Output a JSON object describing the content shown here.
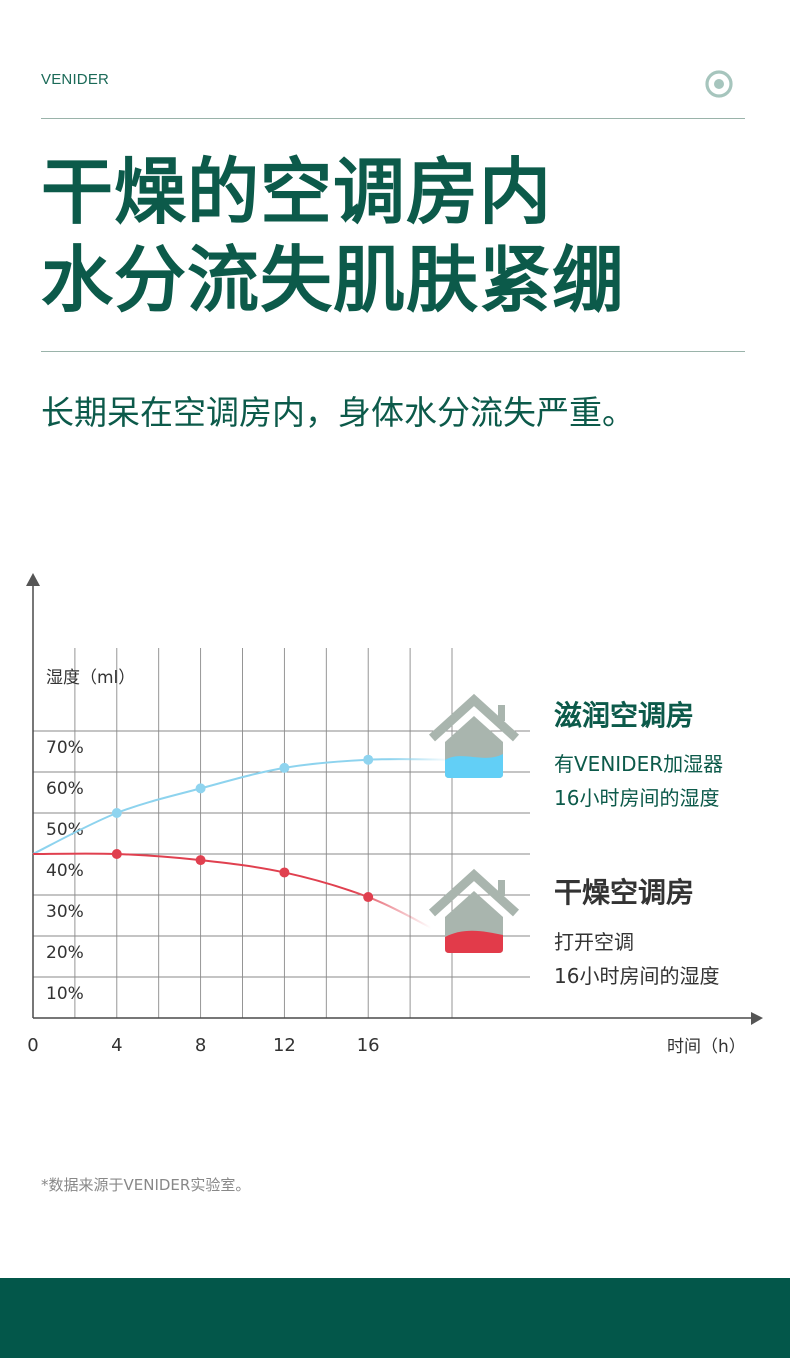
{
  "header": {
    "brand": "VENIDER",
    "menu_icon": "target-circle-icon",
    "headline_line1": "干燥的空调房内",
    "headline_line2": "水分流失肌肤紧绷",
    "subheadline": "长期呆在空调房内，身体水分流失严重。"
  },
  "colors": {
    "brand_green": "#0c5a4a",
    "humid_series": "#8dd3ee",
    "humid_marker": "#8fd4ef",
    "dry_series": "#e0404f",
    "house_roof": "#a9b5ae",
    "house_water_blue": "#62cff6",
    "house_water_red": "#e23b4a",
    "footer": "#03574a"
  },
  "chart_data": {
    "type": "line",
    "ylabel": "湿度（ml）",
    "xlabel": "时间（h）",
    "x_ticks": [
      "0",
      "4",
      "8",
      "12",
      "16"
    ],
    "y_ticks": [
      "10%",
      "20%",
      "30%",
      "40%",
      "50%",
      "60%",
      "70%"
    ],
    "xlim": [
      0,
      24
    ],
    "ylim": [
      0,
      70
    ],
    "grid": true,
    "series": [
      {
        "key": "humid",
        "x": [
          0,
          4,
          8,
          12,
          16,
          20
        ],
        "y": [
          40,
          50,
          56,
          61,
          63,
          63
        ],
        "markers_x": [
          4,
          8,
          12,
          16
        ],
        "markers_y": [
          50,
          56,
          61,
          63
        ]
      },
      {
        "key": "dry",
        "x": [
          0,
          4,
          8,
          12,
          16,
          19
        ],
        "y": [
          40,
          40,
          38.5,
          35.5,
          29.5,
          22
        ],
        "markers_x": [
          4,
          8,
          12,
          16
        ],
        "markers_y": [
          40,
          38.5,
          35.5,
          29.5
        ]
      }
    ],
    "annotations": [
      {
        "icon": "house-blue-water-icon",
        "title": "滋润空调房",
        "line1": "有VENIDER加湿器",
        "line2": "16小时房间的湿度"
      },
      {
        "icon": "house-red-water-icon",
        "title": "干燥空调房",
        "line1": "打开空调",
        "line2": "16小时房间的湿度"
      }
    ]
  },
  "footnote": "*数据来源于VENIDER实验室。"
}
